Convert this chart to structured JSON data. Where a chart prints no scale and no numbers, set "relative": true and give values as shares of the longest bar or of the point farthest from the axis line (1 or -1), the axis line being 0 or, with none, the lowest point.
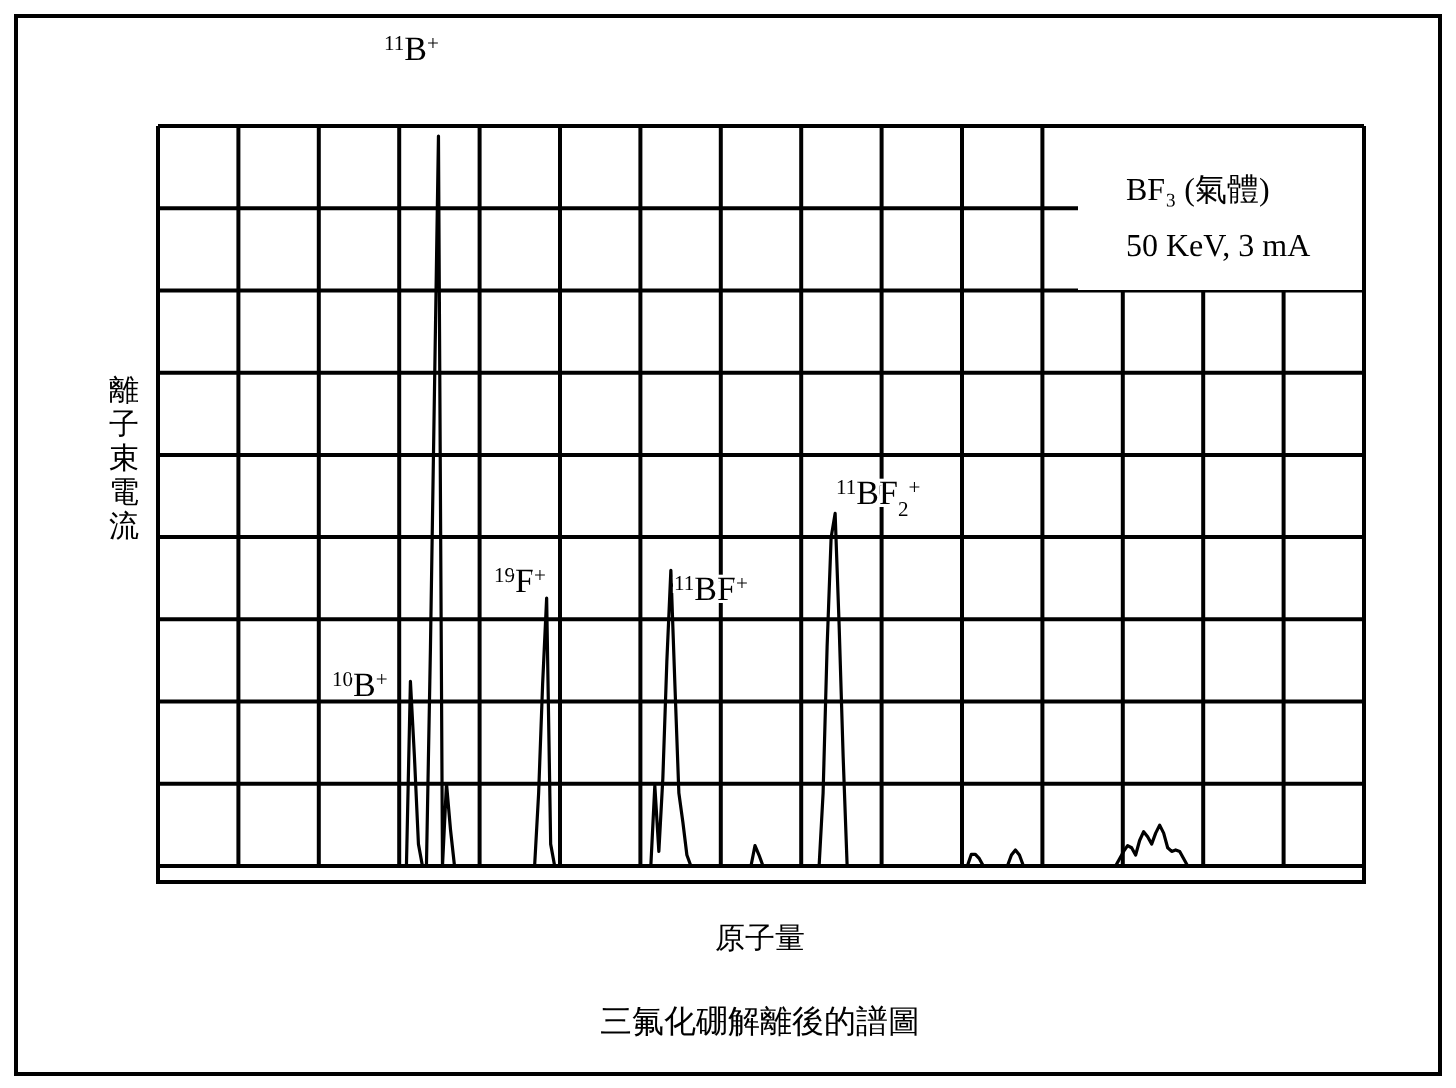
{
  "chart_data": {
    "type": "line",
    "title": "三氟化硼解離後的譜圖",
    "xlabel": "原子量",
    "ylabel": "離子束電流",
    "relative": true,
    "grid": true,
    "color": "#000000",
    "annotations": [
      "$^{11}$B$^{+}$",
      "$^{10}$B$^{+}$",
      "$^{19}$F$^{+}$",
      "$^{11}$BF$^{+}$",
      "$^{11}$BF$_{2}$$^{+}$",
      "BF₃ (氣體)",
      "50 KeV, 3 mA"
    ],
    "categories": [
      null,
      null,
      null,
      null,
      null,
      null,
      null,
      null,
      null,
      null,
      null,
      null,
      null,
      null,
      null,
      null,
      null,
      null,
      null,
      null,
      null,
      null,
      null,
      null,
      null,
      null,
      null,
      null,
      null,
      null,
      null,
      null,
      null,
      null,
      null,
      null,
      null,
      null,
      null,
      null,
      null,
      null,
      null,
      null,
      null,
      null,
      null,
      null,
      null,
      null,
      null,
      null,
      null,
      null,
      null,
      null,
      null,
      null,
      null,
      null,
      null,
      null,
      null,
      null,
      null,
      null,
      null,
      null,
      null,
      null,
      null,
      null,
      null,
      null,
      null,
      null,
      null,
      null,
      null,
      null,
      null,
      null,
      null,
      null,
      null,
      null,
      null,
      null,
      null,
      null,
      null,
      null,
      null,
      null,
      null,
      null,
      null,
      null,
      null,
      null,
      null,
      null,
      null,
      null,
      null,
      null,
      null,
      null,
      null,
      null,
      null,
      null,
      null,
      null,
      null,
      null,
      null,
      null,
      null,
      null,
      null,
      null,
      null,
      null,
      null,
      null,
      null,
      null,
      null,
      null,
      null,
      null,
      null,
      null,
      null,
      null,
      null,
      null,
      null,
      null,
      null,
      null,
      null,
      null,
      null,
      null,
      null,
      null,
      null,
      null,
      null,
      null,
      null,
      null,
      null,
      null,
      null,
      null,
      null,
      null,
      null,
      null,
      null,
      null,
      null,
      null,
      null,
      null,
      null,
      null,
      null,
      null,
      null,
      null,
      null,
      null,
      null,
      null,
      null,
      null,
      null,
      null,
      null,
      null,
      null,
      null,
      null,
      null,
      null,
      null,
      null,
      null,
      null,
      null,
      null,
      null,
      null,
      null,
      null,
      null,
      null,
      null,
      null,
      null,
      null,
      null,
      null,
      null,
      null,
      null,
      null,
      null,
      null,
      null,
      null,
      null,
      null,
      null,
      null,
      null,
      null,
      null,
      null,
      null,
      null,
      null,
      null,
      null,
      null,
      null,
      null,
      null,
      null,
      null,
      null,
      null,
      null,
      null,
      null,
      null,
      null,
      null,
      null,
      null,
      null,
      null,
      null,
      null,
      null,
      null,
      null,
      null,
      null,
      null,
      null,
      null,
      null,
      null,
      null,
      null,
      null,
      null,
      null,
      null,
      null,
      null,
      null,
      null,
      null,
      null,
      null,
      null,
      null,
      null,
      null,
      null,
      null,
      null,
      null,
      null,
      null,
      null,
      null,
      null,
      null,
      null,
      null,
      null,
      null,
      null,
      null,
      null,
      null,
      null,
      null,
      null,
      null,
      null,
      null,
      null,
      null,
      null
    ],
    "values": [
      0,
      0,
      0,
      0,
      0,
      0,
      0,
      0,
      0,
      0,
      0,
      0,
      0,
      0,
      0,
      0,
      0,
      0,
      0,
      0,
      0,
      0,
      0,
      0,
      0,
      0,
      0,
      0,
      0,
      0,
      0,
      0,
      0,
      0,
      0,
      0,
      0,
      0,
      0,
      0,
      0,
      0,
      0,
      0,
      0,
      0,
      0,
      0,
      0,
      0,
      0,
      0,
      0,
      0,
      0,
      0,
      0,
      0,
      0,
      0,
      0,
      0,
      0,
      0.253,
      0.15,
      0.03,
      0,
      0,
      0.3,
      0.65,
      1,
      0,
      0.113,
      0.05,
      0,
      0,
      0,
      0,
      0,
      0,
      0,
      0,
      0,
      0,
      0,
      0,
      0,
      0,
      0,
      0,
      0,
      0,
      0,
      0,
      0,
      0.1,
      0.25,
      0.367,
      0.03,
      0,
      0,
      0,
      0,
      0,
      0,
      0,
      0,
      0,
      0,
      0,
      0,
      0,
      0,
      0,
      0,
      0,
      0,
      0,
      0,
      0,
      0,
      0,
      0,
      0,
      0.11,
      0.02,
      0.12,
      0.28,
      0.405,
      0.25,
      0.1,
      0.06,
      0.015,
      0,
      0,
      0,
      0,
      0,
      0,
      0,
      0,
      0,
      0,
      0,
      0,
      0,
      0,
      0,
      0,
      0.028,
      0.015,
      0,
      0,
      0,
      0,
      0,
      0,
      0,
      0,
      0,
      0,
      0,
      0,
      0,
      0,
      0,
      0.1,
      0.3,
      0.45,
      0.483,
      0.33,
      0.15,
      0,
      0,
      0,
      0,
      0,
      0,
      0,
      0,
      0,
      0,
      0,
      0,
      0,
      0,
      0,
      0,
      0,
      0,
      0,
      0,
      0,
      0,
      0,
      0,
      0,
      0,
      0,
      0,
      0,
      0,
      0,
      0.016,
      0.016,
      0.01,
      0,
      0,
      0,
      0,
      0,
      0,
      0,
      0.015,
      0.022,
      0.015,
      0,
      0,
      0,
      0,
      0,
      0,
      0,
      0,
      0,
      0,
      0,
      0,
      0,
      0,
      0,
      0,
      0,
      0,
      0,
      0,
      0,
      0,
      0,
      0,
      0.01,
      0.02,
      0.028,
      0.025,
      0.015,
      0.035,
      0.047,
      0.04,
      0.03,
      0.045,
      0.056,
      0.045,
      0.025,
      0.02,
      0.022,
      0.02,
      0.01,
      0,
      0,
      0,
      0,
      0,
      0,
      0,
      0,
      0,
      0,
      0,
      0,
      0,
      0,
      0,
      0,
      0,
      0,
      0,
      0,
      0,
      0,
      0,
      0,
      0,
      0,
      0,
      0,
      0,
      0,
      0,
      0,
      0,
      0,
      0,
      0,
      0,
      0,
      0,
      0,
      0,
      0,
      0,
      0,
      0
    ]
  }
}
